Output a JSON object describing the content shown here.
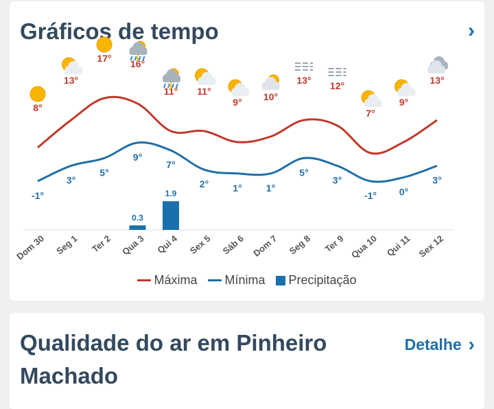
{
  "weather_card": {
    "title": "Gráficos de tempo",
    "chevron": "›",
    "legend": {
      "max": "Máxima",
      "min": "Mínima",
      "precip": "Precipitação"
    },
    "colors": {
      "max": "#c0392b",
      "min": "#1f6fa6",
      "precip": "#1a6fad"
    }
  },
  "chart_data": {
    "type": "line",
    "categories": [
      "Dom 30",
      "Seg 1",
      "Ter 2",
      "Qua 3",
      "Qui 4",
      "Sex 5",
      "Sáb 6",
      "Dom 7",
      "Seg 8",
      "Ter 9",
      "Qua 10",
      "Qui 11",
      "Sex 12"
    ],
    "icons": [
      "sun-icon",
      "partly-cloudy-icon",
      "sun-icon",
      "storm-rain-icon",
      "storm-rain-icon",
      "partly-cloudy-icon",
      "partly-cloudy-icon",
      "cloud-sun-icon",
      "fog-icon",
      "fog-icon",
      "partly-cloudy-icon",
      "partly-cloudy-icon",
      "cloudy-icon"
    ],
    "series": [
      {
        "name": "Máxima",
        "values": [
          8,
          13,
          17,
          16,
          11,
          11,
          9,
          10,
          13,
          12,
          7,
          9,
          13
        ],
        "labels": [
          "8°",
          "13°",
          "17°",
          "16°",
          "11°",
          "11°",
          "9°",
          "10°",
          "13°",
          "12°",
          "7°",
          "9°",
          "13°"
        ]
      },
      {
        "name": "Mínima",
        "values": [
          -1,
          3,
          5,
          9,
          7,
          2,
          1,
          1,
          5,
          3,
          -1,
          0,
          3
        ],
        "labels": [
          "-1°",
          "3°",
          "5°",
          "9°",
          "7°",
          "2°",
          "1°",
          "1°",
          "5°",
          "3°",
          "-1°",
          "0°",
          "3°"
        ]
      },
      {
        "name": "Precipitação",
        "type": "bar",
        "values": [
          0,
          0,
          0,
          0.3,
          1.9,
          0,
          0,
          0,
          0,
          0,
          0,
          0,
          0
        ],
        "labels": [
          "",
          "",
          "",
          "0.3",
          "1.9",
          "",
          "",
          "",
          "",
          "",
          "",
          "",
          ""
        ]
      }
    ]
  },
  "air_card": {
    "title": "Qualidade do ar em Pinheiro Machado",
    "detail_label": "Detalhe",
    "chevron": "›"
  }
}
